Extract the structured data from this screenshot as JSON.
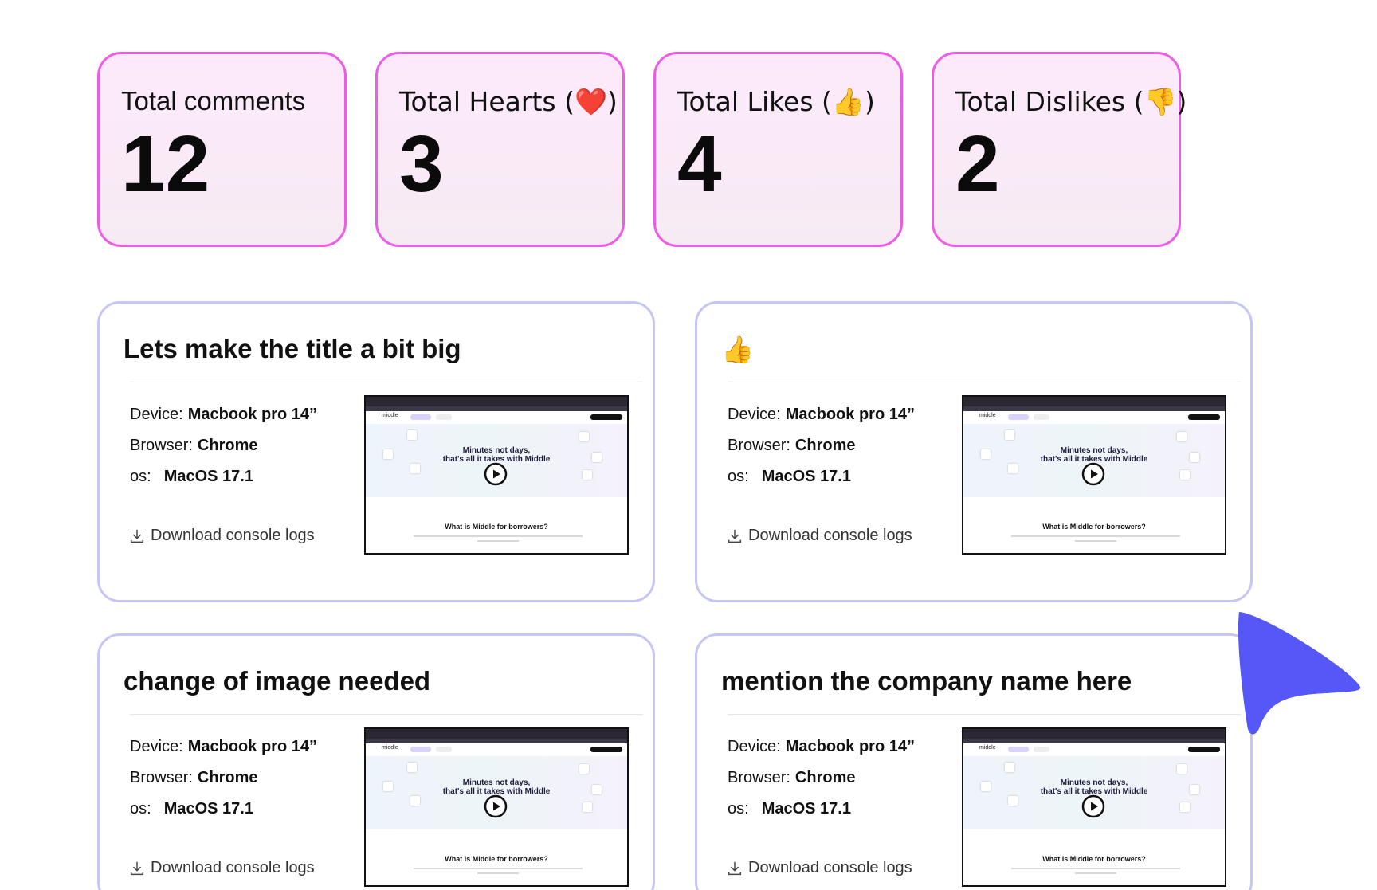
{
  "stats": [
    {
      "label": "Total comments",
      "value": "12"
    },
    {
      "label": "Total Hearts (❤️)",
      "value": "3"
    },
    {
      "label": "Total Likes (👍)",
      "value": "4"
    },
    {
      "label": "Total Dislikes (👎)",
      "value": "2"
    }
  ],
  "comments": [
    {
      "title": "Lets make the title a bit big",
      "device_label": "Device:",
      "device": "Macbook pro 14”",
      "browser_label": "Browser:",
      "browser": "Chrome",
      "os_label": "os:",
      "os": "MacOS 17.1",
      "download": "Download console logs"
    },
    {
      "title": "👍",
      "device_label": "Device:",
      "device": "Macbook pro 14”",
      "browser_label": "Browser:",
      "browser": "Chrome",
      "os_label": "os:",
      "os": "MacOS 17.1",
      "download": "Download console logs"
    },
    {
      "title": "change of image needed",
      "device_label": "Device:",
      "device": "Macbook pro 14”",
      "browser_label": "Browser:",
      "browser": "Chrome",
      "os_label": "os:",
      "os": "MacOS 17.1",
      "download": "Download console logs"
    },
    {
      "title": "mention the company name here",
      "device_label": "Device:",
      "device": "Macbook pro 14”",
      "browser_label": "Browser:",
      "browser": "Chrome",
      "os_label": "os:",
      "os": "MacOS 17.1",
      "download": "Download console logs"
    }
  ],
  "preview": {
    "logo": "middle",
    "headline_1": "Minutes not days,",
    "headline_2": "that's all it takes with Middle",
    "subheading": "What is Middle for borrowers?"
  },
  "colors": {
    "stat_border": "#ee5ce6",
    "stat_background": "#fde9fb",
    "card_border": "#c6c6f5",
    "cursor": "#5558f7"
  },
  "icons": {
    "download": "download-icon",
    "play": "play-icon",
    "cursor": "cursor-arrow-icon"
  }
}
